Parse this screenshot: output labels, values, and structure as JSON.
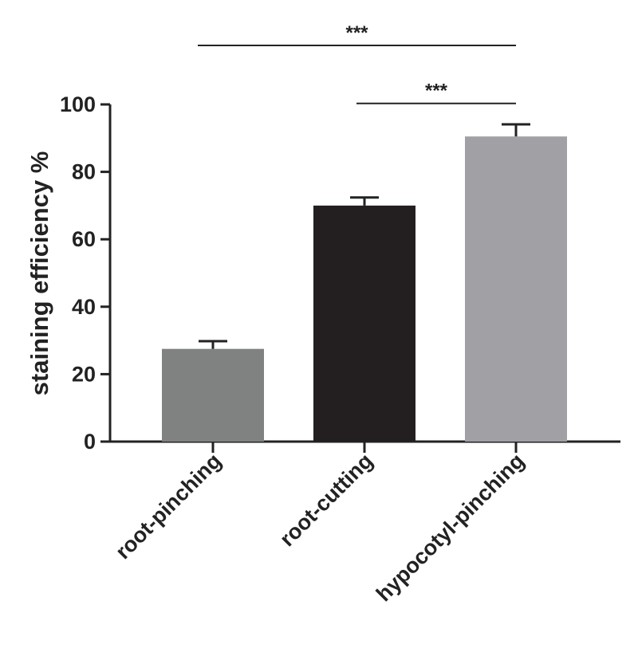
{
  "chart_data": {
    "type": "bar",
    "title": "",
    "xlabel": "",
    "ylabel": "staining efficiency %",
    "ylim": [
      0,
      100
    ],
    "yticks": [
      0,
      20,
      40,
      60,
      80,
      100
    ],
    "categories": [
      "root-pinching",
      "root-cutting",
      "hypocotyl-pinching"
    ],
    "values": [
      27.5,
      70,
      90.5
    ],
    "errors": [
      2.3,
      2.4,
      3.6
    ],
    "colors": [
      "#808282",
      "#231f20",
      "#a1a0a5"
    ],
    "significance": [
      {
        "from": 0,
        "to": 2,
        "label": "***",
        "y": 117.5
      },
      {
        "from": 1,
        "to": 2,
        "label": "***",
        "y": 100.3
      }
    ],
    "grid": false
  }
}
